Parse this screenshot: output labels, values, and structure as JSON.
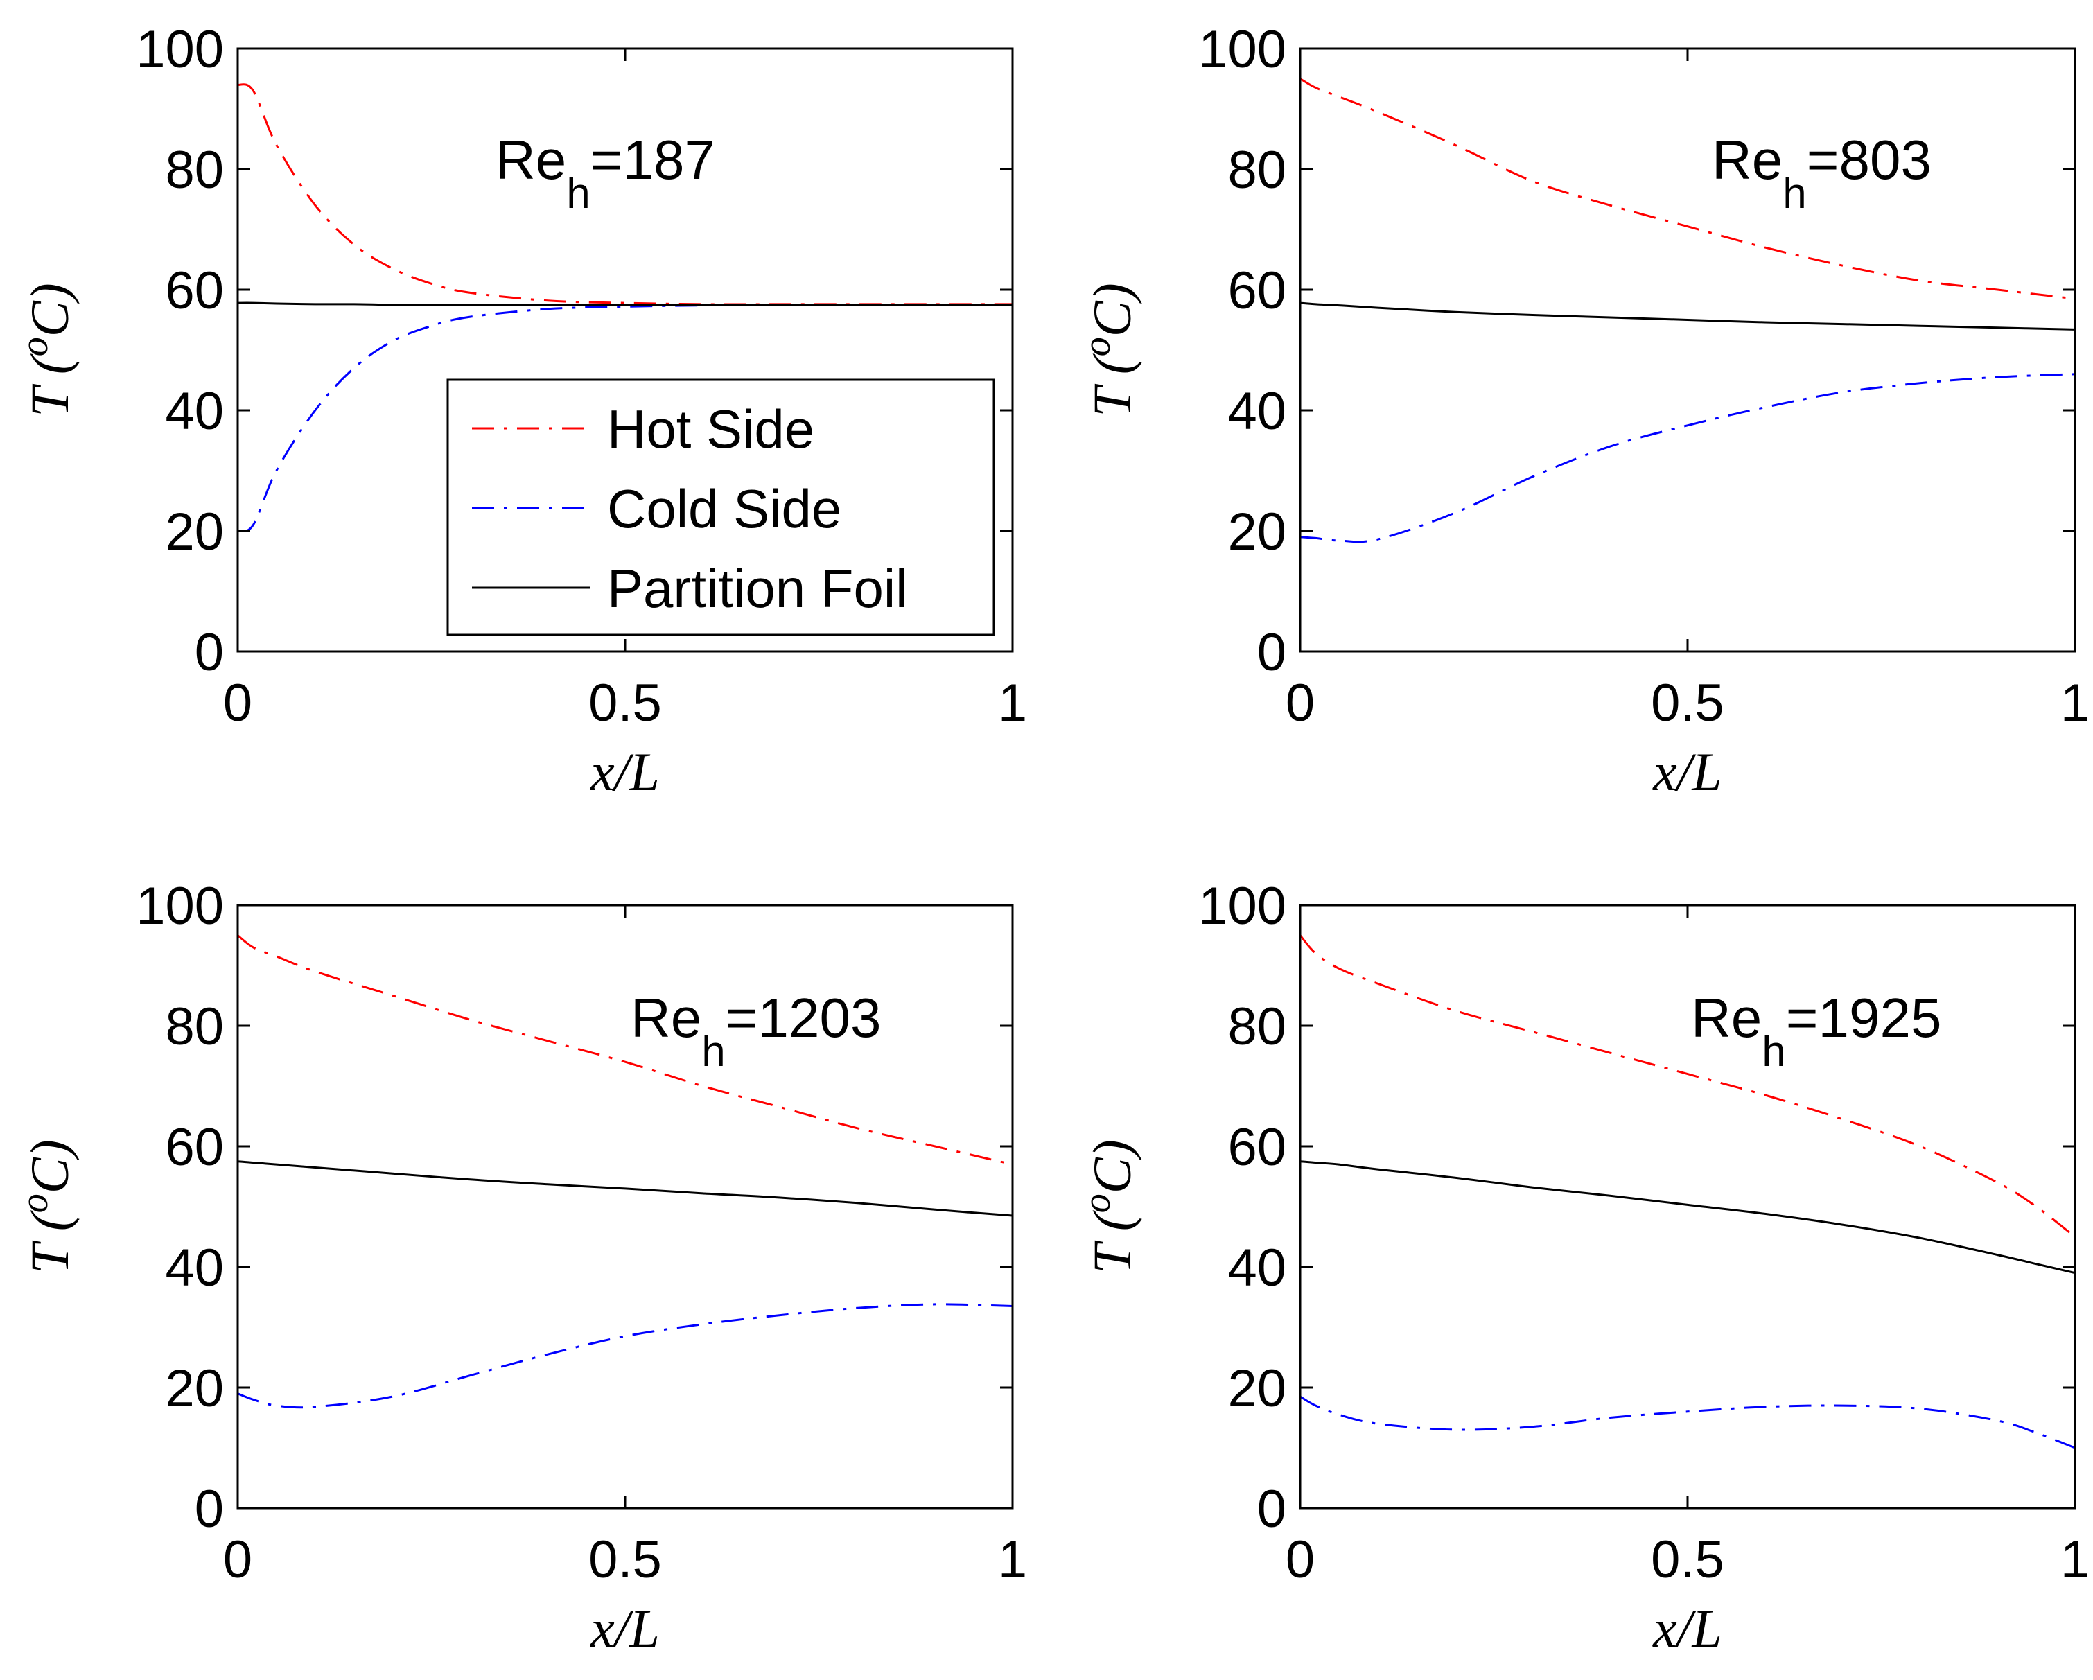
{
  "figure": {
    "legend": {
      "entries": [
        "Hot Side",
        "Cold Side",
        "Partition Foil"
      ],
      "placement": "lower-right of top-left panel"
    },
    "series_style": [
      {
        "name": "Hot Side",
        "color": "#ff0000",
        "dash": "dash-dot"
      },
      {
        "name": "Cold Side",
        "color": "#0000ff",
        "dash": "dash-dot"
      },
      {
        "name": "Partition Foil",
        "color": "#000000",
        "dash": "solid"
      }
    ]
  },
  "chart_data": [
    {
      "type": "line",
      "annotation": {
        "base": "Re",
        "sub": "h",
        "value": "=187"
      },
      "xlabel": "x/L",
      "ylabel": "T (oC)",
      "xlim": [
        0,
        1
      ],
      "ylim": [
        0,
        100
      ],
      "xticks": [
        "0",
        "0.5",
        "1"
      ],
      "yticks": [
        "0",
        "20",
        "40",
        "60",
        "80",
        "100"
      ],
      "x": [
        0,
        0.02,
        0.05,
        0.1,
        0.15,
        0.2,
        0.25,
        0.3,
        0.4,
        0.5,
        0.6,
        0.7,
        0.8,
        0.9,
        1.0
      ],
      "series": [
        {
          "name": "Hot Side",
          "values": [
            94,
            93,
            84,
            74,
            67.5,
            63.5,
            61,
            59.5,
            58.2,
            57.8,
            57.6,
            57.6,
            57.6,
            57.6,
            57.6
          ]
        },
        {
          "name": "Cold Side",
          "values": [
            20,
            21,
            30,
            40,
            47,
            51.5,
            54,
            55.5,
            56.8,
            57.2,
            57.4,
            57.5,
            57.5,
            57.5,
            57.5
          ]
        },
        {
          "name": "Partition Foil",
          "values": [
            57.8,
            57.8,
            57.7,
            57.6,
            57.6,
            57.5,
            57.5,
            57.5,
            57.5,
            57.5,
            57.5,
            57.5,
            57.5,
            57.5,
            57.5
          ]
        }
      ]
    },
    {
      "type": "line",
      "annotation": {
        "base": "Re",
        "sub": "h",
        "value": "=803"
      },
      "xlabel": "x/L",
      "ylabel": "T (oC)",
      "xlim": [
        0,
        1
      ],
      "ylim": [
        0,
        100
      ],
      "xticks": [
        "0",
        "0.5",
        "1"
      ],
      "yticks": [
        "0",
        "20",
        "40",
        "60",
        "80",
        "100"
      ],
      "x": [
        0,
        0.02,
        0.05,
        0.1,
        0.2,
        0.3,
        0.4,
        0.5,
        0.6,
        0.7,
        0.8,
        0.9,
        1.0
      ],
      "series": [
        {
          "name": "Hot Side",
          "values": [
            95,
            93.5,
            92,
            89.5,
            84,
            78,
            74,
            70.5,
            67,
            64,
            61.5,
            60,
            58.5
          ]
        },
        {
          "name": "Cold Side",
          "values": [
            19,
            18.8,
            18.4,
            18.6,
            23,
            29,
            34,
            37.5,
            40.5,
            43,
            44.5,
            45.5,
            46
          ]
        },
        {
          "name": "Partition Foil",
          "values": [
            57.8,
            57.6,
            57.4,
            57,
            56.3,
            55.8,
            55.4,
            55,
            54.6,
            54.3,
            54,
            53.7,
            53.4
          ]
        }
      ]
    },
    {
      "type": "line",
      "annotation": {
        "base": "Re",
        "sub": "h",
        "value": "=1203"
      },
      "xlabel": "x/L",
      "ylabel": "T (oC)",
      "xlim": [
        0,
        1
      ],
      "ylim": [
        0,
        100
      ],
      "xticks": [
        "0",
        "0.5",
        "1"
      ],
      "yticks": [
        "0",
        "20",
        "40",
        "60",
        "80",
        "100"
      ],
      "x": [
        0,
        0.02,
        0.05,
        0.1,
        0.2,
        0.3,
        0.4,
        0.5,
        0.6,
        0.7,
        0.8,
        0.9,
        1.0
      ],
      "series": [
        {
          "name": "Hot Side",
          "values": [
            95,
            93,
            91.5,
            89,
            85,
            81,
            77.5,
            74,
            70,
            66.5,
            63,
            60,
            57
          ]
        },
        {
          "name": "Cold Side",
          "values": [
            19,
            18,
            17,
            16.8,
            18.5,
            22,
            25.5,
            28.5,
            30.5,
            32,
            33.2,
            33.8,
            33.5
          ]
        },
        {
          "name": "Partition Foil",
          "values": [
            57.5,
            57.3,
            57,
            56.5,
            55.5,
            54.5,
            53.7,
            53,
            52.2,
            51.5,
            50.6,
            49.5,
            48.5
          ]
        }
      ]
    },
    {
      "type": "line",
      "annotation": {
        "base": "Re",
        "sub": "h",
        "value": "=1925"
      },
      "xlabel": "x/L",
      "ylabel": "T (oC)",
      "xlim": [
        0,
        1
      ],
      "ylim": [
        0,
        100
      ],
      "xticks": [
        "0",
        "0.5",
        "1"
      ],
      "yticks": [
        "0",
        "20",
        "40",
        "60",
        "80",
        "100"
      ],
      "x": [
        0,
        0.02,
        0.05,
        0.1,
        0.2,
        0.3,
        0.4,
        0.5,
        0.6,
        0.7,
        0.8,
        0.9,
        0.95,
        1.0
      ],
      "series": [
        {
          "name": "Hot Side",
          "values": [
            95,
            92,
            89.5,
            87,
            82.5,
            79,
            75.5,
            72,
            68.5,
            64.5,
            60,
            54,
            50,
            45
          ]
        },
        {
          "name": "Cold Side",
          "values": [
            18.5,
            17,
            15.5,
            14,
            13,
            13.5,
            15,
            16,
            16.8,
            17,
            16.5,
            14.5,
            12.5,
            10
          ]
        },
        {
          "name": "Partition Foil",
          "values": [
            57.5,
            57.3,
            57,
            56.2,
            54.8,
            53.2,
            51.8,
            50.3,
            48.8,
            47,
            44.8,
            42,
            40.5,
            39
          ]
        }
      ]
    }
  ]
}
